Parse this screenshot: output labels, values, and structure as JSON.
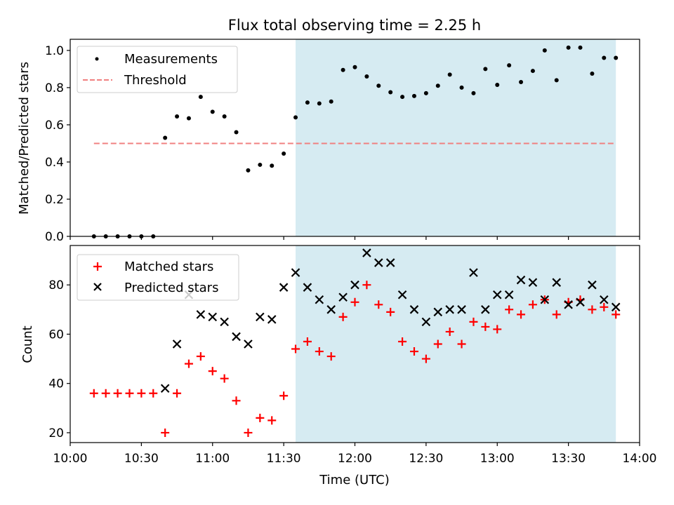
{
  "title": "Flux total observing time = 2.25 h",
  "chart_data": [
    {
      "type": "scatter",
      "ylabel": "Matched/Predicted stars",
      "xlim": [
        "10:00",
        "14:00"
      ],
      "ylim": [
        0,
        1.06
      ],
      "y_ticks": [
        "0.0",
        "0.2",
        "0.4",
        "0.6",
        "0.8",
        "1.0"
      ],
      "legend_placement": "upper-left",
      "shaded_interval": {
        "start": "11:35",
        "end": "13:50",
        "color": "#add8e6"
      },
      "series": [
        {
          "name": "Measurements",
          "marker": "dot",
          "color": "#000000",
          "x": [
            "10:10",
            "10:15",
            "10:20",
            "10:25",
            "10:30",
            "10:35",
            "10:40",
            "10:45",
            "10:50",
            "10:55",
            "11:00",
            "11:05",
            "11:10",
            "11:15",
            "11:20",
            "11:25",
            "11:30",
            "11:35",
            "11:40",
            "11:45",
            "11:50",
            "11:55",
            "12:00",
            "12:05",
            "12:10",
            "12:15",
            "12:20",
            "12:25",
            "12:30",
            "12:35",
            "12:40",
            "12:45",
            "12:50",
            "12:55",
            "13:00",
            "13:05",
            "13:10",
            "13:15",
            "13:20",
            "13:25",
            "13:30",
            "13:35",
            "13:40",
            "13:45",
            "13:50"
          ],
          "y": [
            0,
            0,
            0,
            0,
            0,
            0,
            0.53,
            0.645,
            0.635,
            0.75,
            0.67,
            0.645,
            0.56,
            0.355,
            0.385,
            0.38,
            0.445,
            0.64,
            0.72,
            0.715,
            0.725,
            0.895,
            0.91,
            0.86,
            0.81,
            0.775,
            0.75,
            0.755,
            0.77,
            0.81,
            0.87,
            0.8,
            0.77,
            0.9,
            0.815,
            0.92,
            0.83,
            0.89,
            1.0,
            0.84,
            1.015,
            1.015,
            0.875,
            0.96,
            0.96
          ]
        },
        {
          "name": "Threshold",
          "marker": "dashed-line",
          "color": "#f08080",
          "x": [
            "10:10",
            "13:50"
          ],
          "y": [
            0.5,
            0.5
          ]
        }
      ]
    },
    {
      "type": "scatter",
      "xlabel": "Time (UTC)",
      "ylabel": "Count",
      "xlim": [
        "10:00",
        "14:00"
      ],
      "ylim": [
        16,
        96
      ],
      "x_ticks": [
        "10:00",
        "10:30",
        "11:00",
        "11:30",
        "12:00",
        "12:30",
        "13:00",
        "13:30",
        "14:00"
      ],
      "y_ticks": [
        "20",
        "40",
        "60",
        "80"
      ],
      "legend_placement": "upper-left",
      "shaded_interval": {
        "start": "11:35",
        "end": "13:50",
        "color": "#add8e6"
      },
      "series": [
        {
          "name": "Matched stars",
          "marker": "plus",
          "color": "#ff0000",
          "x": [
            "10:10",
            "10:15",
            "10:20",
            "10:25",
            "10:30",
            "10:35",
            "10:40",
            "10:45",
            "10:50",
            "10:55",
            "11:00",
            "11:05",
            "11:10",
            "11:15",
            "11:20",
            "11:25",
            "11:30",
            "11:35",
            "11:40",
            "11:45",
            "11:50",
            "11:55",
            "12:00",
            "12:05",
            "12:10",
            "12:15",
            "12:20",
            "12:25",
            "12:30",
            "12:35",
            "12:40",
            "12:45",
            "12:50",
            "12:55",
            "13:00",
            "13:05",
            "13:10",
            "13:15",
            "13:20",
            "13:25",
            "13:30",
            "13:35",
            "13:40",
            "13:45",
            "13:50"
          ],
          "y": [
            36,
            36,
            36,
            36,
            36,
            36,
            20,
            36,
            48,
            51,
            45,
            42,
            33,
            20,
            26,
            25,
            35,
            54,
            57,
            53,
            51,
            67,
            73,
            80,
            72,
            69,
            57,
            53,
            50,
            56,
            61,
            56,
            65,
            63,
            62,
            70,
            68,
            72,
            74,
            68,
            73,
            74,
            70,
            71,
            68
          ]
        },
        {
          "name": "Predicted stars",
          "marker": "x",
          "color": "#000000",
          "x": [
            "10:40",
            "10:45",
            "10:50",
            "10:55",
            "11:00",
            "11:05",
            "11:10",
            "11:15",
            "11:20",
            "11:25",
            "11:30",
            "11:35",
            "11:40",
            "11:45",
            "11:50",
            "11:55",
            "12:00",
            "12:05",
            "12:10",
            "12:15",
            "12:20",
            "12:25",
            "12:30",
            "12:35",
            "12:40",
            "12:45",
            "12:50",
            "12:55",
            "13:00",
            "13:05",
            "13:10",
            "13:15",
            "13:20",
            "13:25",
            "13:30",
            "13:35",
            "13:40",
            "13:45",
            "13:50"
          ],
          "y": [
            38,
            56,
            76,
            68,
            67,
            65,
            59,
            56,
            67,
            66,
            79,
            85,
            79,
            74,
            70,
            75,
            80,
            93,
            89,
            89,
            76,
            70,
            65,
            69,
            70,
            70,
            85,
            70,
            76,
            76,
            82,
            81,
            74,
            81,
            72,
            73,
            80,
            74,
            71
          ]
        }
      ]
    }
  ]
}
